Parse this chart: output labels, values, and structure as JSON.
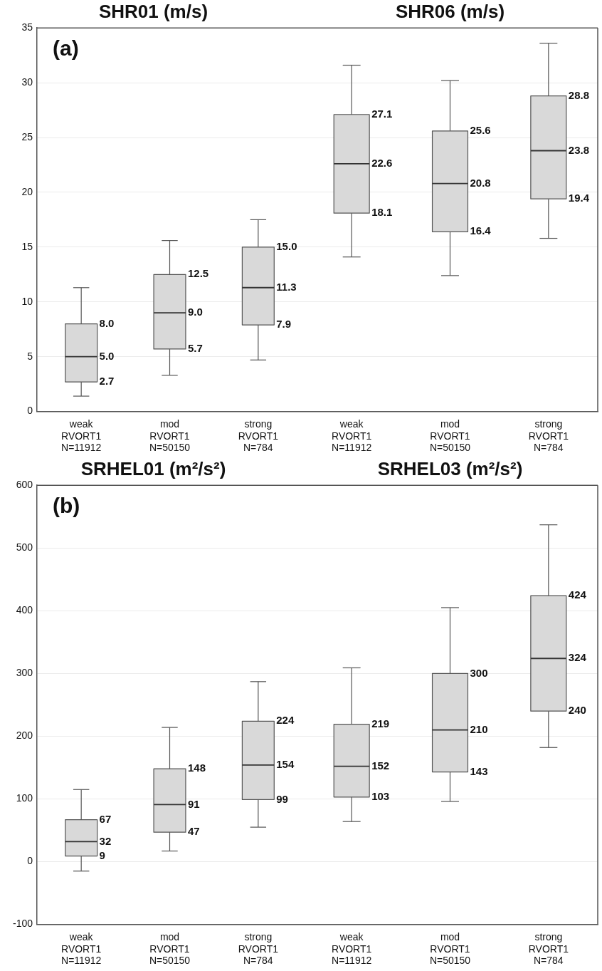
{
  "chart_data": [
    {
      "type": "box",
      "title": "SHR01 (m/s)",
      "annotations": [
        "(a)"
      ],
      "categories": [
        "weak\nRVORT1\nN=11912",
        "mod\nRVORT1\nN=50150",
        "strong\nRVORT1\nN=784"
      ],
      "color": "#d9d9d9",
      "ylim": [
        0,
        35
      ],
      "yticks": [
        0,
        5,
        10,
        15,
        20,
        25,
        30,
        35
      ],
      "grid": "y",
      "tick_labels": true,
      "boxes": [
        {
          "low": 1.4,
          "q1": 2.7,
          "median": 5.0,
          "q3": 8.0,
          "high": 11.3
        },
        {
          "low": 3.3,
          "q1": 5.7,
          "median": 9.0,
          "q3": 12.5,
          "high": 15.6
        },
        {
          "low": 4.7,
          "q1": 7.9,
          "median": 11.3,
          "q3": 15.0,
          "high": 17.5
        }
      ],
      "value_labels": [
        [
          "2.7",
          "5.0",
          "8.0"
        ],
        [
          "5.7",
          "9.0",
          "12.5"
        ],
        [
          "7.9",
          "11.3",
          "15.0"
        ]
      ]
    },
    {
      "type": "box",
      "title": "SHR06 (m/s)",
      "categories": [
        "weak\nRVORT1\nN=11912",
        "mod\nRVORT1\nN=50150",
        "strong\nRVORT1\nN=784"
      ],
      "color": "#d9d9d9",
      "ylim": [
        0,
        35
      ],
      "yticks": [
        0,
        5,
        10,
        15,
        20,
        25,
        30,
        35
      ],
      "grid": "y",
      "tick_labels": "x",
      "boxes": [
        {
          "low": 14.1,
          "q1": 18.1,
          "median": 22.6,
          "q3": 27.1,
          "high": 31.6
        },
        {
          "low": 12.4,
          "q1": 16.4,
          "median": 20.8,
          "q3": 25.6,
          "high": 30.2
        },
        {
          "low": 15.8,
          "q1": 19.4,
          "median": 23.8,
          "q3": 28.8,
          "high": 33.6
        }
      ],
      "value_labels": [
        [
          "18.1",
          "22.6",
          "27.1"
        ],
        [
          "16.4",
          "20.8",
          "25.6"
        ],
        [
          "19.4",
          "23.8",
          "28.8"
        ]
      ]
    },
    {
      "type": "box",
      "title": "SRHEL01 (m²/s²)",
      "annotations": [
        "(b)"
      ],
      "categories": [
        "weak\nRVORT1\nN=11912",
        "mod\nRVORT1\nN=50150",
        "strong\nRVORT1\nN=784"
      ],
      "color": "#d9d9d9",
      "ylim": [
        -100,
        600
      ],
      "yticks": [
        -100,
        0,
        100,
        200,
        300,
        400,
        500,
        600
      ],
      "grid": "y",
      "tick_labels": true,
      "boxes": [
        {
          "low": -15,
          "q1": 9,
          "median": 32,
          "q3": 67,
          "high": 115
        },
        {
          "low": 17,
          "q1": 47,
          "median": 91,
          "q3": 148,
          "high": 214
        },
        {
          "low": 55,
          "q1": 99,
          "median": 154,
          "q3": 224,
          "high": 287
        }
      ],
      "value_labels": [
        [
          "9",
          "32",
          "67"
        ],
        [
          "47",
          "91",
          "148"
        ],
        [
          "99",
          "154",
          "224"
        ]
      ]
    },
    {
      "type": "box",
      "title": "SRHEL03 (m²/s²)",
      "categories": [
        "weak\nRVORT1\nN=11912",
        "mod\nRVORT1\nN=50150",
        "strong\nRVORT1\nN=784"
      ],
      "color": "#d9d9d9",
      "ylim": [
        -100,
        600
      ],
      "yticks": [
        -100,
        0,
        100,
        200,
        300,
        400,
        500,
        600
      ],
      "grid": "y",
      "tick_labels": "x",
      "boxes": [
        {
          "low": 64,
          "q1": 103,
          "median": 152,
          "q3": 219,
          "high": 309
        },
        {
          "low": 96,
          "q1": 143,
          "median": 210,
          "q3": 300,
          "high": 405
        },
        {
          "low": 182,
          "q1": 240,
          "median": 324,
          "q3": 424,
          "high": 537
        }
      ],
      "value_labels": [
        [
          "103",
          "152",
          "219"
        ],
        [
          "143",
          "210",
          "300"
        ],
        [
          "240",
          "324",
          "424"
        ]
      ]
    }
  ]
}
